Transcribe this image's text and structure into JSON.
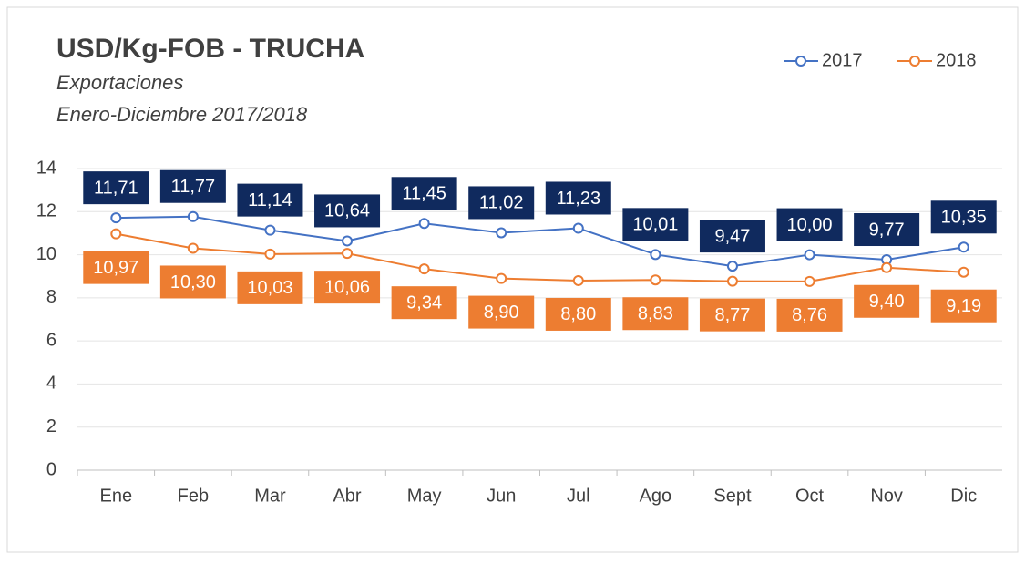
{
  "chart_data": {
    "type": "line",
    "title": "USD/Kg-FOB - TRUCHA",
    "subtitle": [
      "Exportaciones",
      "Enero-Diciembre 2017/2018"
    ],
    "categories": [
      "Ene",
      "Feb",
      "Mar",
      "Abr",
      "May",
      "Jun",
      "Jul",
      "Ago",
      "Sept",
      "Oct",
      "Nov",
      "Dic"
    ],
    "series": [
      {
        "name": "2017",
        "color": "#4472c4",
        "label_color": "#102a5e",
        "values": [
          11.71,
          11.77,
          11.14,
          10.64,
          11.45,
          11.02,
          11.23,
          10.01,
          9.47,
          10.0,
          9.77,
          10.35
        ],
        "value_labels": [
          "11,71",
          "11,77",
          "11,14",
          "10,64",
          "11,45",
          "11,02",
          "11,23",
          "10,01",
          "9,47",
          "10,00",
          "9,77",
          "10,35"
        ]
      },
      {
        "name": "2018",
        "color": "#ed7d31",
        "label_color": "#ed7d31",
        "values": [
          10.97,
          10.3,
          10.03,
          10.06,
          9.34,
          8.9,
          8.8,
          8.83,
          8.77,
          8.76,
          9.4,
          9.19
        ],
        "value_labels": [
          "10,97",
          "10,30",
          "10,03",
          "10,06",
          "9,34",
          "8,90",
          "8,80",
          "8,83",
          "8,77",
          "8,76",
          "9,40",
          "9,19"
        ]
      }
    ],
    "ylim": [
      0,
      14
    ],
    "yticks": [
      0,
      2,
      4,
      6,
      8,
      10,
      12,
      14
    ],
    "grid": true,
    "legend": "top-right"
  }
}
